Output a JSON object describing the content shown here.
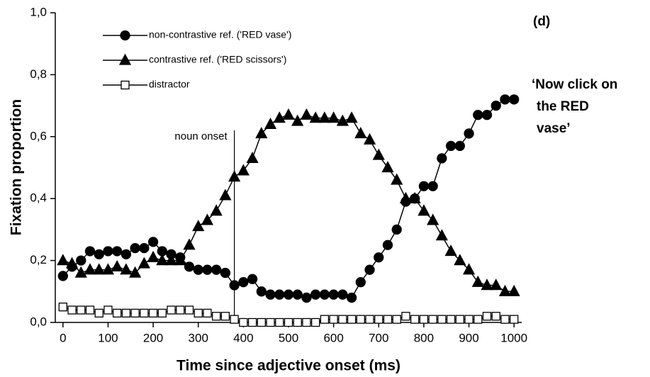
{
  "chart_data": {
    "type": "line",
    "xlabel": "Time since adjective onset (ms)",
    "ylabel": "Fixation proportion",
    "panel_label": "(d)",
    "side_text": [
      "‘Now click on",
      "the RED",
      "vase’"
    ],
    "vline": {
      "x": 380,
      "label": "noun onset"
    },
    "x": [
      0,
      20,
      40,
      60,
      80,
      100,
      120,
      140,
      160,
      180,
      200,
      220,
      240,
      260,
      280,
      300,
      320,
      340,
      360,
      380,
      400,
      420,
      440,
      460,
      480,
      500,
      520,
      540,
      560,
      580,
      600,
      620,
      640,
      660,
      680,
      700,
      720,
      740,
      760,
      780,
      800,
      820,
      840,
      860,
      880,
      900,
      920,
      940,
      960,
      980,
      1000
    ],
    "series": [
      {
        "name": "non-contrastive ref. ('RED vase')",
        "color": "#000000",
        "marker": "circle",
        "values": [
          0.15,
          0.18,
          0.2,
          0.23,
          0.22,
          0.23,
          0.23,
          0.22,
          0.24,
          0.24,
          0.26,
          0.23,
          0.22,
          0.21,
          0.18,
          0.17,
          0.17,
          0.17,
          0.16,
          0.12,
          0.13,
          0.14,
          0.1,
          0.09,
          0.09,
          0.09,
          0.09,
          0.08,
          0.09,
          0.09,
          0.09,
          0.09,
          0.08,
          0.13,
          0.17,
          0.21,
          0.25,
          0.3,
          0.39,
          0.4,
          0.44,
          0.44,
          0.53,
          0.57,
          0.57,
          0.61,
          0.67,
          0.67,
          0.7,
          0.72,
          0.72
        ]
      },
      {
        "name": "contrastive ref. ('RED scissors')",
        "color": "#000000",
        "marker": "triangle",
        "values": [
          0.2,
          0.19,
          0.16,
          0.17,
          0.17,
          0.17,
          0.18,
          0.17,
          0.16,
          0.19,
          0.21,
          0.2,
          0.2,
          0.2,
          0.25,
          0.31,
          0.33,
          0.36,
          0.41,
          0.47,
          0.49,
          0.53,
          0.61,
          0.64,
          0.66,
          0.67,
          0.65,
          0.67,
          0.66,
          0.66,
          0.66,
          0.65,
          0.66,
          0.61,
          0.59,
          0.54,
          0.5,
          0.46,
          0.4,
          0.4,
          0.36,
          0.33,
          0.28,
          0.23,
          0.2,
          0.17,
          0.13,
          0.12,
          0.12,
          0.1,
          0.1
        ]
      },
      {
        "name": "distractor",
        "color": "#000000",
        "marker": "square",
        "values": [
          0.05,
          0.04,
          0.04,
          0.04,
          0.03,
          0.04,
          0.03,
          0.03,
          0.03,
          0.03,
          0.03,
          0.03,
          0.04,
          0.04,
          0.04,
          0.03,
          0.03,
          0.02,
          0.02,
          0.01,
          0,
          0,
          0,
          0,
          0,
          0,
          0,
          0,
          0,
          0.01,
          0.01,
          0.01,
          0.01,
          0.01,
          0.01,
          0.01,
          0.01,
          0.01,
          0.02,
          0.01,
          0.01,
          0.01,
          0.01,
          0.01,
          0.01,
          0.01,
          0.01,
          0.02,
          0.02,
          0.01,
          0.01
        ]
      }
    ],
    "xlim": [
      -17,
      1017
    ],
    "ylim": [
      0,
      1
    ],
    "xticks": [
      0,
      100,
      200,
      300,
      400,
      500,
      600,
      700,
      800,
      900,
      1000
    ],
    "yticks": [
      {
        "value": 0,
        "label": "0,0"
      },
      {
        "value": 0.2,
        "label": "0,2"
      },
      {
        "value": 0.4,
        "label": "0,4"
      },
      {
        "value": 0.6,
        "label": "0,6"
      },
      {
        "value": 0.8,
        "label": "0,8"
      },
      {
        "value": 1,
        "label": "1,0"
      }
    ],
    "grid": false,
    "legend": "upper left"
  }
}
